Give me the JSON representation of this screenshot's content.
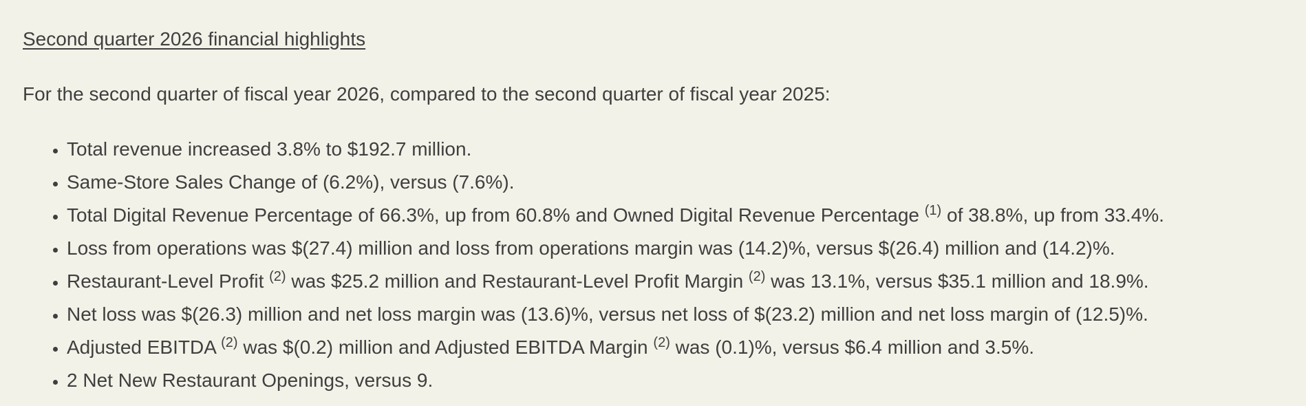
{
  "header": {
    "title": "Second quarter 2026 financial highlights"
  },
  "intro": "For the second quarter of fiscal year 2026, compared to the second quarter of fiscal year 2025:",
  "bullets": [
    [
      {
        "text": "Total revenue increased 3.8% to $192.7 million."
      }
    ],
    [
      {
        "text": "Same-Store Sales Change of (6.2%), versus (7.6%)."
      }
    ],
    [
      {
        "text": "Total Digital Revenue Percentage of 66.3%, up from 60.8% and Owned Digital Revenue Percentage "
      },
      {
        "sup": "(1)"
      },
      {
        "text": " of 38.8%, up from 33.4%."
      }
    ],
    [
      {
        "text": "Loss from operations was $(27.4) million and loss from operations margin was (14.2)%, versus $(26.4) million and (14.2)%."
      }
    ],
    [
      {
        "text": "Restaurant-Level Profit "
      },
      {
        "sup": "(2)"
      },
      {
        "text": " was $25.2 million and Restaurant-Level Profit Margin "
      },
      {
        "sup": "(2)"
      },
      {
        "text": " was 13.1%, versus $35.1 million and 18.9%."
      }
    ],
    [
      {
        "text": "Net loss was $(26.3) million and net loss margin was (13.6)%, versus net loss of $(23.2) million and net loss margin of (12.5)%."
      }
    ],
    [
      {
        "text": "Adjusted EBITDA "
      },
      {
        "sup": "(2)"
      },
      {
        "text": " was $(0.2) million and Adjusted EBITDA Margin "
      },
      {
        "sup": "(2)"
      },
      {
        "text": " was (0.1)%, versus $6.4 million and 3.5%."
      }
    ],
    [
      {
        "text": "2 Net New Restaurant Openings, versus 9."
      }
    ]
  ]
}
